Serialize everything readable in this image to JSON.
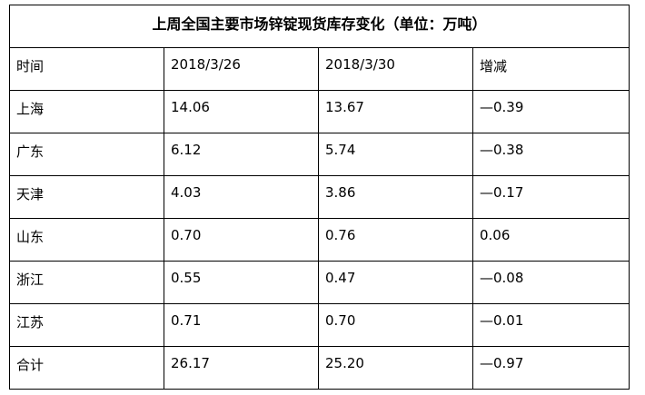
{
  "table": {
    "title": "上周全国主要市场锌锭现货库存变化（单位：万吨）",
    "header": [
      "时间",
      "2018/3/26",
      "2018/3/30",
      "增减"
    ],
    "rows": [
      [
        "上海",
        "14.06",
        "13.67",
        "—0.39"
      ],
      [
        "广东",
        "6.12",
        "5.74",
        "—0.38"
      ],
      [
        "天津",
        "4.03",
        "3.86",
        "—0.17"
      ],
      [
        "山东",
        "0.70",
        "0.76",
        "0.06"
      ],
      [
        "浙江",
        "0.55",
        "0.47",
        "—0.08"
      ],
      [
        "江苏",
        "0.71",
        "0.70",
        "—0.01"
      ],
      [
        "合计",
        "26.17",
        "25.20",
        "—0.97"
      ]
    ]
  }
}
